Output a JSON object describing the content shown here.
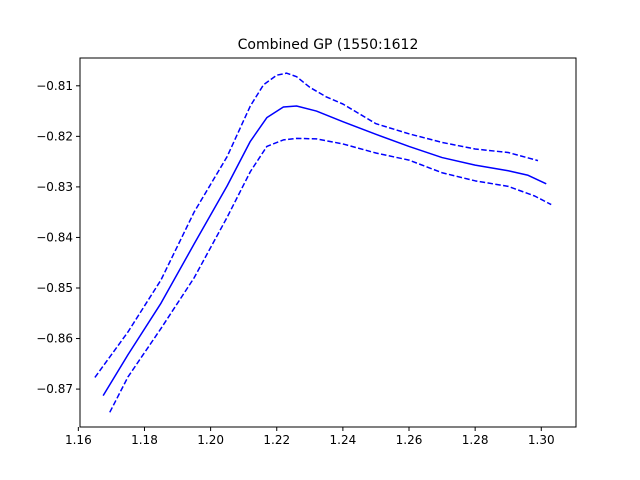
{
  "chart_data": {
    "type": "line",
    "title": "Combined GP (1550:1612",
    "xlabel": "",
    "ylabel": "",
    "xlim": [
      1.1605,
      1.3105
    ],
    "ylim": [
      -0.8775,
      -0.8045
    ],
    "x_ticks": [
      1.16,
      1.18,
      1.2,
      1.22,
      1.24,
      1.26,
      1.28,
      1.3
    ],
    "x_tick_labels": [
      "1.16",
      "1.18",
      "1.20",
      "1.22",
      "1.24",
      "1.26",
      "1.28",
      "1.30"
    ],
    "y_ticks": [
      -0.87,
      -0.86,
      -0.85,
      -0.84,
      -0.83,
      -0.82,
      -0.81
    ],
    "y_tick_labels": [
      "−0.87",
      "−0.86",
      "−0.85",
      "−0.84",
      "−0.83",
      "−0.82",
      "−0.81"
    ],
    "grid": false,
    "color": "#0000ff",
    "series": [
      {
        "style": "solid",
        "x": [
          1.1675,
          1.175,
          1.185,
          1.195,
          1.205,
          1.212,
          1.217,
          1.222,
          1.226,
          1.232,
          1.24,
          1.25,
          1.26,
          1.27,
          1.28,
          1.29,
          1.296,
          1.3015
        ],
        "y": [
          -0.8713,
          -0.8632,
          -0.853,
          -0.8413,
          -0.8298,
          -0.821,
          -0.8163,
          -0.8142,
          -0.814,
          -0.815,
          -0.8171,
          -0.8196,
          -0.822,
          -0.8242,
          -0.8257,
          -0.8268,
          -0.8277,
          -0.8294
        ]
      },
      {
        "style": "dashed",
        "x": [
          1.165,
          1.175,
          1.185,
          1.195,
          1.205,
          1.212,
          1.216,
          1.22,
          1.223,
          1.226,
          1.23,
          1.235,
          1.24,
          1.25,
          1.26,
          1.27,
          1.28,
          1.29,
          1.299
        ],
        "y": [
          -0.8677,
          -0.8587,
          -0.8484,
          -0.835,
          -0.824,
          -0.814,
          -0.8098,
          -0.8079,
          -0.8075,
          -0.8082,
          -0.8103,
          -0.8122,
          -0.8136,
          -0.8175,
          -0.8195,
          -0.8212,
          -0.8225,
          -0.8232,
          -0.8248
        ]
      },
      {
        "style": "dashed",
        "x": [
          1.1695,
          1.175,
          1.185,
          1.195,
          1.205,
          1.212,
          1.217,
          1.222,
          1.226,
          1.232,
          1.24,
          1.25,
          1.26,
          1.27,
          1.28,
          1.29,
          1.298,
          1.303
        ],
        "y": [
          -0.8746,
          -0.8676,
          -0.858,
          -0.848,
          -0.836,
          -0.827,
          -0.822,
          -0.8207,
          -0.8204,
          -0.8205,
          -0.8215,
          -0.8233,
          -0.8247,
          -0.8272,
          -0.8288,
          -0.8299,
          -0.8318,
          -0.8335
        ]
      }
    ]
  }
}
